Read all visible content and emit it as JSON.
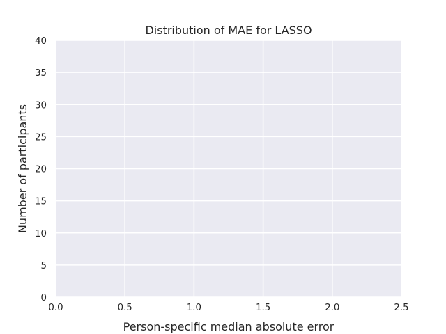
{
  "chart_data": {
    "type": "bar",
    "title": "Distribution of MAE for LASSO",
    "xlabel": "Person-specific median absolute error",
    "ylabel": "Number of participants",
    "xlim": [
      0.0,
      2.5
    ],
    "ylim": [
      0,
      40
    ],
    "x_ticks": [
      "0.0",
      "0.5",
      "1.0",
      "1.5",
      "2.0",
      "2.5"
    ],
    "y_ticks": [
      "0",
      "5",
      "10",
      "15",
      "20",
      "25",
      "30",
      "35",
      "40"
    ],
    "bins": [],
    "counts": [],
    "grid": true,
    "background_color": "#eaeaf2",
    "grid_color": "#ffffff",
    "text_color": "#262626"
  }
}
